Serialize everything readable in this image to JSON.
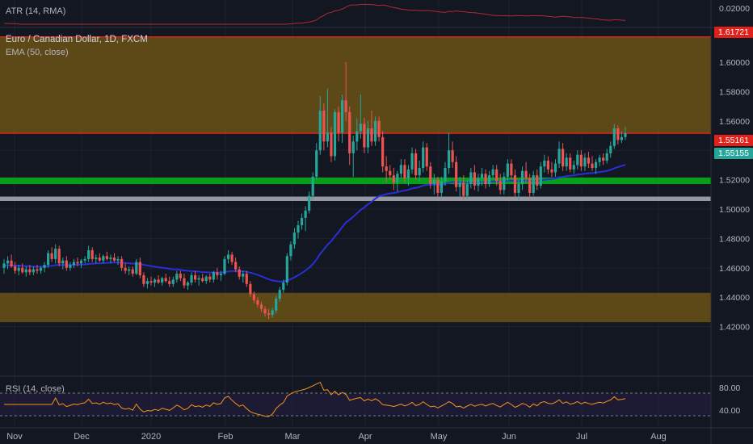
{
  "chart_data": {
    "type": "candlestick",
    "title": "Euro / Canadian Dollar, 1D, FXCM",
    "indicators": {
      "atr_label": "ATR (14, RMA)",
      "ema_label": "EMA (50, close)",
      "rsi_label": "RSI (14, close)"
    },
    "x_ticks": [
      "Nov",
      "Dec",
      "2020",
      "Feb",
      "Mar",
      "Apr",
      "May",
      "Jun",
      "Jul",
      "Aug"
    ],
    "main_y_ticks": [
      "1.60000",
      "1.58000",
      "1.56000",
      "1.54000",
      "1.52000",
      "1.50000",
      "1.48000",
      "1.46000",
      "1.44000",
      "1.42000"
    ],
    "main_ylim": [
      1.415,
      1.625
    ],
    "atr_y_tick": "0.02000",
    "rsi_y_ticks": [
      "80.00",
      "40.00"
    ],
    "price_labels": {
      "top_zone": "1.61721",
      "resistance": "1.55161",
      "last": "1.55155"
    },
    "zones": [
      {
        "name": "upper supply zone",
        "from": 1.5516,
        "to": 1.6172,
        "color": "#7a5c14"
      },
      {
        "name": "green support",
        "from": 1.517,
        "to": 1.5215,
        "color": "#089e1a"
      },
      {
        "name": "grey support",
        "from": 1.5055,
        "to": 1.5085,
        "color": "#9598a1"
      },
      {
        "name": "lower demand zone",
        "from": 1.423,
        "to": 1.443,
        "color": "#7a5c14"
      }
    ],
    "colors": {
      "up": "#26a69a",
      "down": "#ef5350",
      "ema": "#2a2ed8",
      "atr": "#b22833",
      "rsi": "#f7931a",
      "resistance_line": "#e0201a"
    },
    "candles": [
      {
        "o": 1.46,
        "h": 1.466,
        "l": 1.456,
        "c": 1.463
      },
      {
        "o": 1.463,
        "h": 1.468,
        "l": 1.459,
        "c": 1.465
      },
      {
        "o": 1.465,
        "h": 1.469,
        "l": 1.46,
        "c": 1.461
      },
      {
        "o": 1.461,
        "h": 1.464,
        "l": 1.456,
        "c": 1.458
      },
      {
        "o": 1.458,
        "h": 1.462,
        "l": 1.455,
        "c": 1.46
      },
      {
        "o": 1.46,
        "h": 1.463,
        "l": 1.456,
        "c": 1.457
      },
      {
        "o": 1.457,
        "h": 1.461,
        "l": 1.454,
        "c": 1.459
      },
      {
        "o": 1.459,
        "h": 1.462,
        "l": 1.455,
        "c": 1.457
      },
      {
        "o": 1.457,
        "h": 1.461,
        "l": 1.455,
        "c": 1.459
      },
      {
        "o": 1.459,
        "h": 1.462,
        "l": 1.456,
        "c": 1.458
      },
      {
        "o": 1.458,
        "h": 1.461,
        "l": 1.456,
        "c": 1.46
      },
      {
        "o": 1.46,
        "h": 1.464,
        "l": 1.457,
        "c": 1.462
      },
      {
        "o": 1.462,
        "h": 1.472,
        "l": 1.46,
        "c": 1.47
      },
      {
        "o": 1.47,
        "h": 1.474,
        "l": 1.464,
        "c": 1.466
      },
      {
        "o": 1.466,
        "h": 1.476,
        "l": 1.463,
        "c": 1.473
      },
      {
        "o": 1.473,
        "h": 1.475,
        "l": 1.461,
        "c": 1.463
      },
      {
        "o": 1.463,
        "h": 1.467,
        "l": 1.459,
        "c": 1.465
      },
      {
        "o": 1.465,
        "h": 1.468,
        "l": 1.458,
        "c": 1.46
      },
      {
        "o": 1.46,
        "h": 1.464,
        "l": 1.458,
        "c": 1.462
      },
      {
        "o": 1.462,
        "h": 1.466,
        "l": 1.46,
        "c": 1.464
      },
      {
        "o": 1.464,
        "h": 1.467,
        "l": 1.461,
        "c": 1.463
      },
      {
        "o": 1.463,
        "h": 1.466,
        "l": 1.46,
        "c": 1.465
      },
      {
        "o": 1.465,
        "h": 1.468,
        "l": 1.463,
        "c": 1.466
      },
      {
        "o": 1.466,
        "h": 1.475,
        "l": 1.464,
        "c": 1.472
      },
      {
        "o": 1.472,
        "h": 1.474,
        "l": 1.464,
        "c": 1.466
      },
      {
        "o": 1.466,
        "h": 1.469,
        "l": 1.463,
        "c": 1.467
      },
      {
        "o": 1.467,
        "h": 1.47,
        "l": 1.464,
        "c": 1.465
      },
      {
        "o": 1.465,
        "h": 1.469,
        "l": 1.463,
        "c": 1.468
      },
      {
        "o": 1.468,
        "h": 1.471,
        "l": 1.465,
        "c": 1.466
      },
      {
        "o": 1.466,
        "h": 1.469,
        "l": 1.463,
        "c": 1.467
      },
      {
        "o": 1.467,
        "h": 1.47,
        "l": 1.464,
        "c": 1.465
      },
      {
        "o": 1.465,
        "h": 1.468,
        "l": 1.462,
        "c": 1.466
      },
      {
        "o": 1.466,
        "h": 1.468,
        "l": 1.458,
        "c": 1.46
      },
      {
        "o": 1.46,
        "h": 1.463,
        "l": 1.456,
        "c": 1.458
      },
      {
        "o": 1.458,
        "h": 1.461,
        "l": 1.455,
        "c": 1.459
      },
      {
        "o": 1.459,
        "h": 1.461,
        "l": 1.454,
        "c": 1.456
      },
      {
        "o": 1.456,
        "h": 1.466,
        "l": 1.455,
        "c": 1.464
      },
      {
        "o": 1.464,
        "h": 1.467,
        "l": 1.453,
        "c": 1.455
      },
      {
        "o": 1.455,
        "h": 1.457,
        "l": 1.447,
        "c": 1.449
      },
      {
        "o": 1.449,
        "h": 1.453,
        "l": 1.446,
        "c": 1.451
      },
      {
        "o": 1.451,
        "h": 1.454,
        "l": 1.448,
        "c": 1.45
      },
      {
        "o": 1.45,
        "h": 1.453,
        "l": 1.447,
        "c": 1.452
      },
      {
        "o": 1.452,
        "h": 1.455,
        "l": 1.449,
        "c": 1.45
      },
      {
        "o": 1.45,
        "h": 1.454,
        "l": 1.448,
        "c": 1.453
      },
      {
        "o": 1.453,
        "h": 1.456,
        "l": 1.45,
        "c": 1.451
      },
      {
        "o": 1.451,
        "h": 1.454,
        "l": 1.447,
        "c": 1.449
      },
      {
        "o": 1.449,
        "h": 1.454,
        "l": 1.447,
        "c": 1.452
      },
      {
        "o": 1.452,
        "h": 1.458,
        "l": 1.45,
        "c": 1.456
      },
      {
        "o": 1.456,
        "h": 1.458,
        "l": 1.451,
        "c": 1.453
      },
      {
        "o": 1.453,
        "h": 1.456,
        "l": 1.446,
        "c": 1.448
      },
      {
        "o": 1.448,
        "h": 1.451,
        "l": 1.445,
        "c": 1.45
      },
      {
        "o": 1.45,
        "h": 1.457,
        "l": 1.448,
        "c": 1.455
      },
      {
        "o": 1.455,
        "h": 1.458,
        "l": 1.45,
        "c": 1.452
      },
      {
        "o": 1.452,
        "h": 1.455,
        "l": 1.448,
        "c": 1.453
      },
      {
        "o": 1.453,
        "h": 1.456,
        "l": 1.45,
        "c": 1.451
      },
      {
        "o": 1.451,
        "h": 1.455,
        "l": 1.449,
        "c": 1.454
      },
      {
        "o": 1.454,
        "h": 1.456,
        "l": 1.45,
        "c": 1.452
      },
      {
        "o": 1.452,
        "h": 1.458,
        "l": 1.45,
        "c": 1.457
      },
      {
        "o": 1.457,
        "h": 1.46,
        "l": 1.452,
        "c": 1.455
      },
      {
        "o": 1.455,
        "h": 1.458,
        "l": 1.451,
        "c": 1.456
      },
      {
        "o": 1.456,
        "h": 1.468,
        "l": 1.455,
        "c": 1.466
      },
      {
        "o": 1.466,
        "h": 1.472,
        "l": 1.463,
        "c": 1.469
      },
      {
        "o": 1.469,
        "h": 1.471,
        "l": 1.462,
        "c": 1.464
      },
      {
        "o": 1.464,
        "h": 1.467,
        "l": 1.457,
        "c": 1.459
      },
      {
        "o": 1.459,
        "h": 1.461,
        "l": 1.452,
        "c": 1.454
      },
      {
        "o": 1.454,
        "h": 1.458,
        "l": 1.45,
        "c": 1.456
      },
      {
        "o": 1.456,
        "h": 1.458,
        "l": 1.447,
        "c": 1.449
      },
      {
        "o": 1.449,
        "h": 1.451,
        "l": 1.44,
        "c": 1.442
      },
      {
        "o": 1.442,
        "h": 1.444,
        "l": 1.436,
        "c": 1.438
      },
      {
        "o": 1.438,
        "h": 1.44,
        "l": 1.433,
        "c": 1.435
      },
      {
        "o": 1.435,
        "h": 1.437,
        "l": 1.43,
        "c": 1.432
      },
      {
        "o": 1.432,
        "h": 1.434,
        "l": 1.427,
        "c": 1.429
      },
      {
        "o": 1.429,
        "h": 1.432,
        "l": 1.425,
        "c": 1.428
      },
      {
        "o": 1.428,
        "h": 1.433,
        "l": 1.426,
        "c": 1.431
      },
      {
        "o": 1.431,
        "h": 1.441,
        "l": 1.429,
        "c": 1.439
      },
      {
        "o": 1.439,
        "h": 1.447,
        "l": 1.437,
        "c": 1.445
      },
      {
        "o": 1.445,
        "h": 1.452,
        "l": 1.443,
        "c": 1.45
      },
      {
        "o": 1.45,
        "h": 1.47,
        "l": 1.448,
        "c": 1.468
      },
      {
        "o": 1.468,
        "h": 1.478,
        "l": 1.465,
        "c": 1.476
      },
      {
        "o": 1.476,
        "h": 1.487,
        "l": 1.473,
        "c": 1.484
      },
      {
        "o": 1.484,
        "h": 1.492,
        "l": 1.48,
        "c": 1.489
      },
      {
        "o": 1.489,
        "h": 1.497,
        "l": 1.486,
        "c": 1.494
      },
      {
        "o": 1.494,
        "h": 1.502,
        "l": 1.485,
        "c": 1.499
      },
      {
        "o": 1.499,
        "h": 1.512,
        "l": 1.497,
        "c": 1.509
      },
      {
        "o": 1.509,
        "h": 1.525,
        "l": 1.506,
        "c": 1.522
      },
      {
        "o": 1.522,
        "h": 1.545,
        "l": 1.52,
        "c": 1.54
      },
      {
        "o": 1.54,
        "h": 1.577,
        "l": 1.537,
        "c": 1.567
      },
      {
        "o": 1.567,
        "h": 1.572,
        "l": 1.54,
        "c": 1.546
      },
      {
        "o": 1.546,
        "h": 1.582,
        "l": 1.542,
        "c": 1.552
      },
      {
        "o": 1.552,
        "h": 1.556,
        "l": 1.532,
        "c": 1.536
      },
      {
        "o": 1.536,
        "h": 1.568,
        "l": 1.533,
        "c": 1.566
      },
      {
        "o": 1.566,
        "h": 1.57,
        "l": 1.546,
        "c": 1.552
      },
      {
        "o": 1.552,
        "h": 1.578,
        "l": 1.545,
        "c": 1.574
      },
      {
        "o": 1.574,
        "h": 1.6,
        "l": 1.56,
        "c": 1.566
      },
      {
        "o": 1.566,
        "h": 1.57,
        "l": 1.53,
        "c": 1.538
      },
      {
        "o": 1.538,
        "h": 1.55,
        "l": 1.522,
        "c": 1.546
      },
      {
        "o": 1.546,
        "h": 1.562,
        "l": 1.54,
        "c": 1.553
      },
      {
        "o": 1.553,
        "h": 1.578,
        "l": 1.548,
        "c": 1.558
      },
      {
        "o": 1.558,
        "h": 1.562,
        "l": 1.538,
        "c": 1.542
      },
      {
        "o": 1.542,
        "h": 1.56,
        "l": 1.538,
        "c": 1.555
      },
      {
        "o": 1.555,
        "h": 1.567,
        "l": 1.543,
        "c": 1.546
      },
      {
        "o": 1.546,
        "h": 1.563,
        "l": 1.543,
        "c": 1.56
      },
      {
        "o": 1.56,
        "h": 1.563,
        "l": 1.546,
        "c": 1.549
      },
      {
        "o": 1.549,
        "h": 1.553,
        "l": 1.525,
        "c": 1.529
      },
      {
        "o": 1.529,
        "h": 1.536,
        "l": 1.518,
        "c": 1.526
      },
      {
        "o": 1.526,
        "h": 1.53,
        "l": 1.52,
        "c": 1.523
      },
      {
        "o": 1.523,
        "h": 1.528,
        "l": 1.513,
        "c": 1.518
      },
      {
        "o": 1.518,
        "h": 1.526,
        "l": 1.512,
        "c": 1.524
      },
      {
        "o": 1.524,
        "h": 1.534,
        "l": 1.521,
        "c": 1.53
      },
      {
        "o": 1.53,
        "h": 1.534,
        "l": 1.518,
        "c": 1.521
      },
      {
        "o": 1.521,
        "h": 1.53,
        "l": 1.516,
        "c": 1.527
      },
      {
        "o": 1.527,
        "h": 1.542,
        "l": 1.524,
        "c": 1.538
      },
      {
        "o": 1.538,
        "h": 1.541,
        "l": 1.52,
        "c": 1.523
      },
      {
        "o": 1.523,
        "h": 1.533,
        "l": 1.519,
        "c": 1.528
      },
      {
        "o": 1.528,
        "h": 1.546,
        "l": 1.525,
        "c": 1.542
      },
      {
        "o": 1.542,
        "h": 1.545,
        "l": 1.526,
        "c": 1.529
      },
      {
        "o": 1.529,
        "h": 1.532,
        "l": 1.514,
        "c": 1.517
      },
      {
        "o": 1.517,
        "h": 1.524,
        "l": 1.51,
        "c": 1.52
      },
      {
        "o": 1.52,
        "h": 1.522,
        "l": 1.508,
        "c": 1.511
      },
      {
        "o": 1.511,
        "h": 1.522,
        "l": 1.508,
        "c": 1.519
      },
      {
        "o": 1.519,
        "h": 1.532,
        "l": 1.516,
        "c": 1.528
      },
      {
        "o": 1.528,
        "h": 1.552,
        "l": 1.524,
        "c": 1.54
      },
      {
        "o": 1.54,
        "h": 1.546,
        "l": 1.528,
        "c": 1.532
      },
      {
        "o": 1.532,
        "h": 1.536,
        "l": 1.512,
        "c": 1.515
      },
      {
        "o": 1.515,
        "h": 1.522,
        "l": 1.508,
        "c": 1.518
      },
      {
        "o": 1.518,
        "h": 1.523,
        "l": 1.506,
        "c": 1.509
      },
      {
        "o": 1.509,
        "h": 1.52,
        "l": 1.507,
        "c": 1.517
      },
      {
        "o": 1.517,
        "h": 1.528,
        "l": 1.514,
        "c": 1.525
      },
      {
        "o": 1.525,
        "h": 1.53,
        "l": 1.513,
        "c": 1.516
      },
      {
        "o": 1.516,
        "h": 1.524,
        "l": 1.512,
        "c": 1.521
      },
      {
        "o": 1.521,
        "h": 1.528,
        "l": 1.516,
        "c": 1.524
      },
      {
        "o": 1.524,
        "h": 1.527,
        "l": 1.514,
        "c": 1.517
      },
      {
        "o": 1.517,
        "h": 1.526,
        "l": 1.515,
        "c": 1.523
      },
      {
        "o": 1.523,
        "h": 1.53,
        "l": 1.52,
        "c": 1.527
      },
      {
        "o": 1.527,
        "h": 1.53,
        "l": 1.516,
        "c": 1.519
      },
      {
        "o": 1.519,
        "h": 1.524,
        "l": 1.51,
        "c": 1.513
      },
      {
        "o": 1.513,
        "h": 1.525,
        "l": 1.51,
        "c": 1.522
      },
      {
        "o": 1.522,
        "h": 1.534,
        "l": 1.519,
        "c": 1.531
      },
      {
        "o": 1.531,
        "h": 1.534,
        "l": 1.52,
        "c": 1.523
      },
      {
        "o": 1.523,
        "h": 1.527,
        "l": 1.508,
        "c": 1.511
      },
      {
        "o": 1.511,
        "h": 1.52,
        "l": 1.506,
        "c": 1.517
      },
      {
        "o": 1.517,
        "h": 1.529,
        "l": 1.513,
        "c": 1.526
      },
      {
        "o": 1.526,
        "h": 1.532,
        "l": 1.518,
        "c": 1.521
      },
      {
        "o": 1.521,
        "h": 1.524,
        "l": 1.508,
        "c": 1.511
      },
      {
        "o": 1.511,
        "h": 1.526,
        "l": 1.509,
        "c": 1.523
      },
      {
        "o": 1.523,
        "h": 1.527,
        "l": 1.513,
        "c": 1.516
      },
      {
        "o": 1.516,
        "h": 1.532,
        "l": 1.514,
        "c": 1.529
      },
      {
        "o": 1.529,
        "h": 1.537,
        "l": 1.525,
        "c": 1.533
      },
      {
        "o": 1.533,
        "h": 1.536,
        "l": 1.524,
        "c": 1.527
      },
      {
        "o": 1.527,
        "h": 1.532,
        "l": 1.522,
        "c": 1.525
      },
      {
        "o": 1.525,
        "h": 1.534,
        "l": 1.522,
        "c": 1.531
      },
      {
        "o": 1.531,
        "h": 1.546,
        "l": 1.528,
        "c": 1.541
      },
      {
        "o": 1.541,
        "h": 1.545,
        "l": 1.526,
        "c": 1.529
      },
      {
        "o": 1.529,
        "h": 1.538,
        "l": 1.526,
        "c": 1.535
      },
      {
        "o": 1.535,
        "h": 1.538,
        "l": 1.525,
        "c": 1.527
      },
      {
        "o": 1.527,
        "h": 1.533,
        "l": 1.524,
        "c": 1.53
      },
      {
        "o": 1.53,
        "h": 1.54,
        "l": 1.527,
        "c": 1.537
      },
      {
        "o": 1.537,
        "h": 1.54,
        "l": 1.526,
        "c": 1.529
      },
      {
        "o": 1.529,
        "h": 1.538,
        "l": 1.526,
        "c": 1.535
      },
      {
        "o": 1.535,
        "h": 1.539,
        "l": 1.528,
        "c": 1.531
      },
      {
        "o": 1.531,
        "h": 1.536,
        "l": 1.526,
        "c": 1.528
      },
      {
        "o": 1.528,
        "h": 1.534,
        "l": 1.524,
        "c": 1.532
      },
      {
        "o": 1.532,
        "h": 1.537,
        "l": 1.529,
        "c": 1.535
      },
      {
        "o": 1.535,
        "h": 1.538,
        "l": 1.53,
        "c": 1.533
      },
      {
        "o": 1.533,
        "h": 1.541,
        "l": 1.531,
        "c": 1.538
      },
      {
        "o": 1.538,
        "h": 1.546,
        "l": 1.535,
        "c": 1.543
      },
      {
        "o": 1.543,
        "h": 1.558,
        "l": 1.541,
        "c": 1.555
      },
      {
        "o": 1.555,
        "h": 1.557,
        "l": 1.544,
        "c": 1.547
      },
      {
        "o": 1.547,
        "h": 1.553,
        "l": 1.545,
        "c": 1.549
      },
      {
        "o": 1.549,
        "h": 1.556,
        "l": 1.547,
        "c": 1.5516
      }
    ]
  }
}
